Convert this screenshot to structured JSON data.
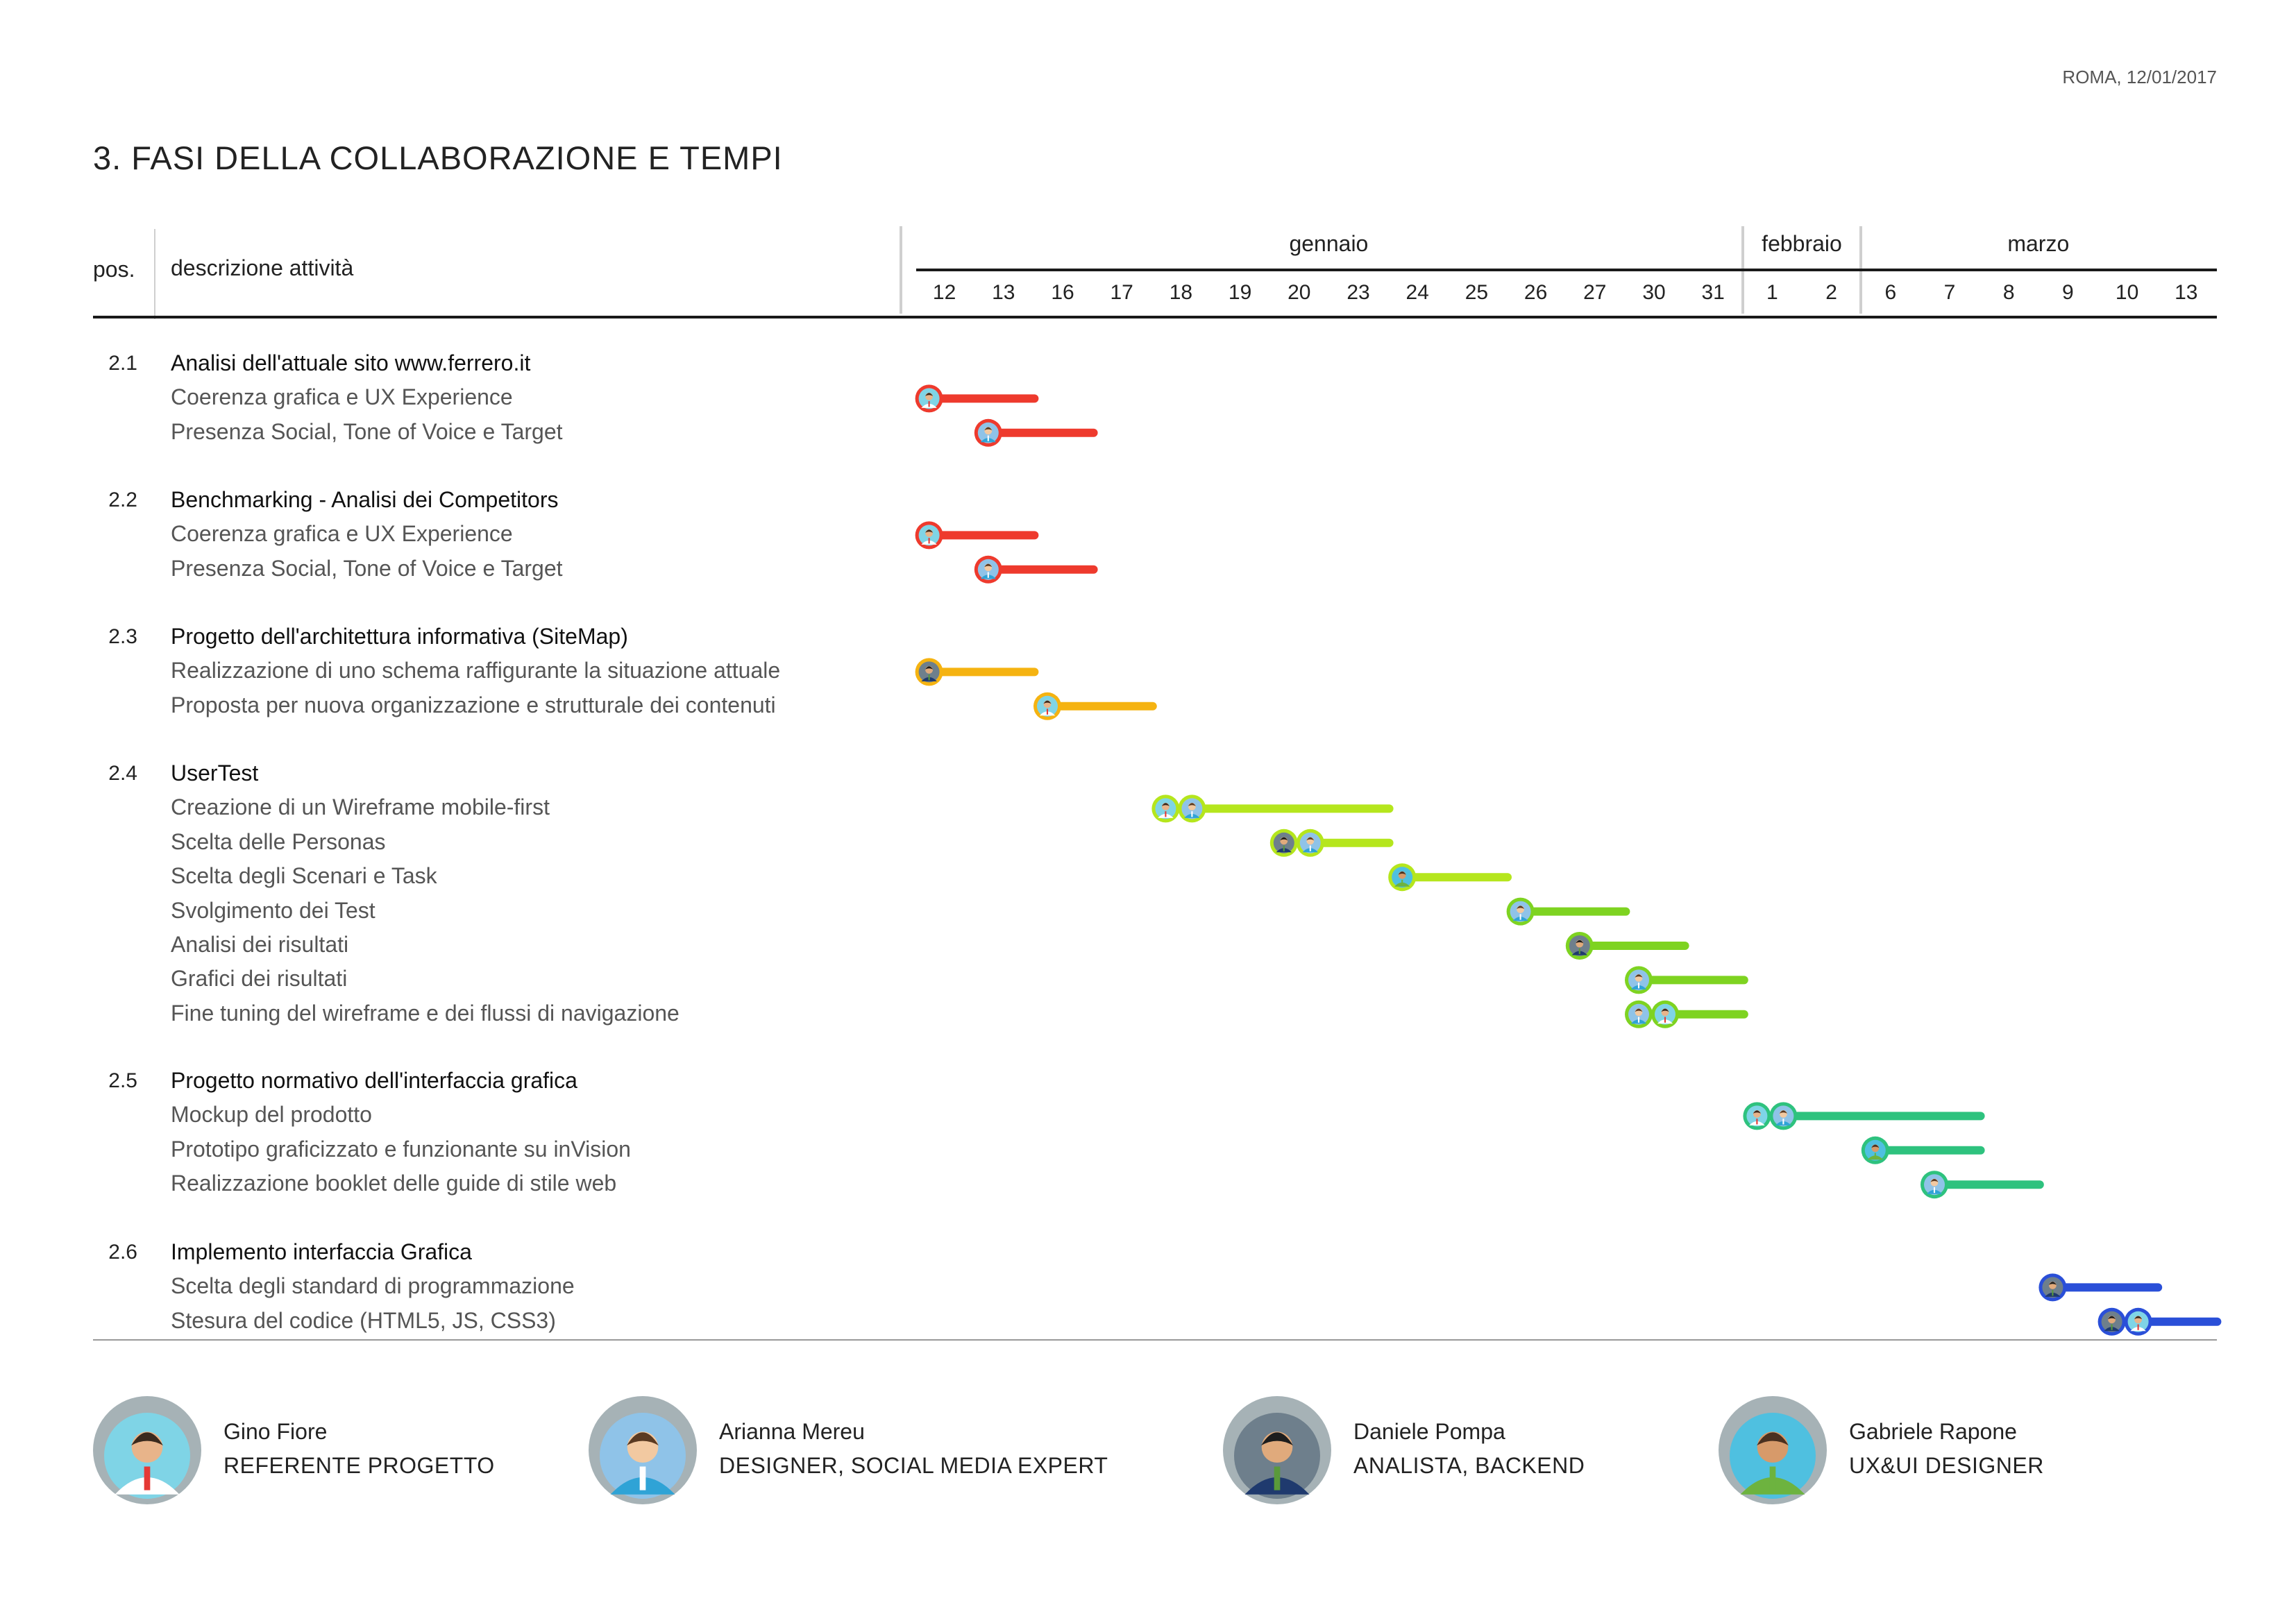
{
  "header": {
    "date": "ROMA, 12/01/2017",
    "title": "3. FASI DELLA COLLABORAZIONE E TEMPI",
    "col_pos": "pos.",
    "col_desc": "descrizione attività"
  },
  "chart_data": {
    "type": "gantt",
    "months": [
      {
        "label": "gennaio",
        "first": 0,
        "last": 13
      },
      {
        "label": "febbraio",
        "first": 14,
        "last": 15
      },
      {
        "label": "marzo",
        "first": 16,
        "last": 21
      }
    ],
    "days": [
      "12",
      "13",
      "16",
      "17",
      "18",
      "19",
      "20",
      "23",
      "24",
      "25",
      "26",
      "27",
      "30",
      "31",
      "1",
      "2",
      "6",
      "7",
      "8",
      "9",
      "10",
      "13"
    ],
    "sections": [
      {
        "pos": "2.1",
        "title": "Analisi dell'attuale sito www.ferrero.it",
        "color": "#ee3a2d",
        "tasks": [
          {
            "label": "Coerenza grafica e UX Experience",
            "start": 0,
            "end": 2,
            "people": [
              "gino"
            ]
          },
          {
            "label": "Presenza Social, Tone of Voice e Target",
            "start": 1,
            "end": 3,
            "people": [
              "arianna"
            ]
          }
        ]
      },
      {
        "pos": "2.2",
        "title": "Benchmarking - Analisi dei Competitors",
        "color": "#ee3a2d",
        "tasks": [
          {
            "label": "Coerenza grafica e UX Experience",
            "start": 0,
            "end": 2,
            "people": [
              "gino"
            ]
          },
          {
            "label": "Presenza Social, Tone of Voice e Target",
            "start": 1,
            "end": 3,
            "people": [
              "arianna"
            ]
          }
        ]
      },
      {
        "pos": "2.3",
        "title": "Progetto dell'architettura informativa (SiteMap)",
        "color": "#f5b311",
        "tasks": [
          {
            "label": "Realizzazione di uno schema raffigurante la situazione attuale",
            "start": 0,
            "end": 2,
            "people": [
              "daniele"
            ]
          },
          {
            "label": "Proposta per nuova organizzazione e strutturale dei contenuti",
            "start": 2,
            "end": 4,
            "people": [
              "gino"
            ]
          }
        ]
      },
      {
        "pos": "2.4",
        "title": "UserTest",
        "color": "#b5e61d",
        "tasks": [
          {
            "label": "Creazione di un Wireframe mobile-first",
            "start": 4,
            "end": 8,
            "people": [
              "gino",
              "arianna"
            ]
          },
          {
            "label": "Scelta delle Personas",
            "start": 6,
            "end": 8,
            "people": [
              "daniele",
              "arianna"
            ]
          },
          {
            "label": "Scelta degli Scenari e Task",
            "start": 8,
            "end": 10,
            "people": [
              "gabriele"
            ]
          },
          {
            "label": "Svolgimento dei Test",
            "start": 10,
            "end": 12,
            "people": [
              "arianna"
            ],
            "color": "#7ed321"
          },
          {
            "label": "Analisi dei risultati",
            "start": 11,
            "end": 13,
            "people": [
              "daniele"
            ],
            "color": "#7ed321"
          },
          {
            "label": "Grafici dei risultati",
            "start": 12,
            "end": 14,
            "people": [
              "arianna"
            ],
            "color": "#7ed321"
          },
          {
            "label": "Fine tuning del wireframe e dei flussi di navigazione",
            "start": 12,
            "end": 14,
            "people": [
              "arianna",
              "gino"
            ],
            "color": "#7ed321"
          }
        ]
      },
      {
        "pos": "2.5",
        "title": "Progetto normativo dell'interfaccia grafica",
        "color": "#2ec27e",
        "tasks": [
          {
            "label": "Mockup del prodotto",
            "start": 14,
            "end": 18,
            "people": [
              "gino",
              "arianna"
            ]
          },
          {
            "label": "Prototipo graficizzato e funzionante su inVision",
            "start": 16,
            "end": 18,
            "people": [
              "gabriele"
            ]
          },
          {
            "label": "Realizzazione booklet delle guide di stile web",
            "start": 17,
            "end": 19,
            "people": [
              "arianna"
            ]
          }
        ]
      },
      {
        "pos": "2.6",
        "title": "Implemento interfaccia Grafica",
        "color": "#2a4fd8",
        "tasks": [
          {
            "label": "Scelta degli standard di programmazione",
            "start": 19,
            "end": 21,
            "people": [
              "daniele"
            ]
          },
          {
            "label": "Stesura del codice (HTML5, JS, CSS3)",
            "start": 20,
            "end": 22,
            "people": [
              "daniele",
              "gino"
            ]
          }
        ]
      }
    ]
  },
  "people": [
    {
      "key": "gino",
      "name": "Gino Fiore",
      "role": "REFERENTE PROGETTO"
    },
    {
      "key": "arianna",
      "name": "Arianna Mereu",
      "role": "DESIGNER, SOCIAL MEDIA EXPERT"
    },
    {
      "key": "daniele",
      "name": "Daniele Pompa",
      "role": "ANALISTA, BACKEND"
    },
    {
      "key": "gabriele",
      "name": "Gabriele Rapone",
      "role": "UX&UI DESIGNER"
    }
  ]
}
